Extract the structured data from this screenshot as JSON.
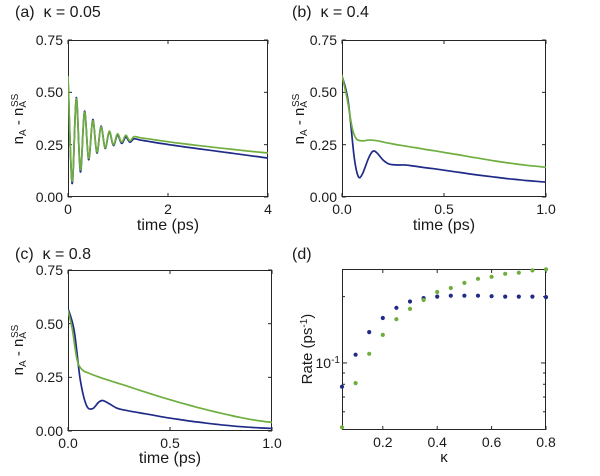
{
  "figure": {
    "background": "#ffffff",
    "spine_color": "#262626",
    "green": "#6fae3e",
    "blue": "#1f2b87"
  },
  "chart_data": [
    {
      "id": "a",
      "type": "line",
      "title": "(a)  κ = 0.05",
      "xlabel": "time (ps)",
      "ylabel_parts": {
        "p1": "n",
        "s1": "A",
        "p2": " - ",
        "p3": "n",
        "s3": "A",
        "sup3": "SS"
      },
      "xlim": [
        0,
        4
      ],
      "ylim": [
        0,
        0.75
      ],
      "grid": false,
      "legend": "none",
      "xticks": {
        "values": [
          0,
          2,
          4
        ],
        "labels": [
          "0",
          "2",
          "4"
        ]
      },
      "yticks": {
        "values": [
          0,
          0.25,
          0.5,
          0.75
        ],
        "labels": [
          "0.00",
          "0.25",
          "0.50",
          "0.75"
        ]
      },
      "series": [
        {
          "name": "blue",
          "color": "#1f2b87",
          "points": [
            [
              0,
              0.575
            ],
            [
              0.0825,
              0.065
            ],
            [
              0.165,
              0.475
            ],
            [
              0.2475,
              0.12
            ],
            [
              0.33,
              0.41
            ],
            [
              0.4125,
              0.178
            ],
            [
              0.495,
              0.37
            ],
            [
              0.5775,
              0.21
            ],
            [
              0.66,
              0.338
            ],
            [
              0.7425,
              0.232
            ],
            [
              0.825,
              0.312
            ],
            [
              0.9075,
              0.246
            ],
            [
              0.99,
              0.296
            ],
            [
              1.0725,
              0.256
            ],
            [
              1.155,
              0.286
            ],
            [
              1.2375,
              0.262
            ],
            [
              1.32,
              0.278
            ],
            [
              1.45,
              0.272
            ],
            [
              1.6,
              0.266
            ],
            [
              1.8,
              0.258
            ],
            [
              2,
              0.251
            ],
            [
              2.25,
              0.242
            ],
            [
              2.5,
              0.234
            ],
            [
              2.75,
              0.226
            ],
            [
              3,
              0.218
            ],
            [
              3.25,
              0.21
            ],
            [
              3.5,
              0.202
            ],
            [
              3.75,
              0.194
            ],
            [
              4,
              0.186
            ]
          ]
        },
        {
          "name": "green",
          "color": "#6fae3e",
          "points": [
            [
              0,
              0.575
            ],
            [
              0.0825,
              0.075
            ],
            [
              0.165,
              0.47
            ],
            [
              0.2475,
              0.13
            ],
            [
              0.33,
              0.405
            ],
            [
              0.4125,
              0.185
            ],
            [
              0.495,
              0.365
            ],
            [
              0.5775,
              0.215
            ],
            [
              0.66,
              0.335
            ],
            [
              0.7425,
              0.235
            ],
            [
              0.825,
              0.315
            ],
            [
              0.9075,
              0.25
            ],
            [
              0.99,
              0.302
            ],
            [
              1.0725,
              0.262
            ],
            [
              1.155,
              0.295
            ],
            [
              1.2375,
              0.268
            ],
            [
              1.32,
              0.288
            ],
            [
              1.45,
              0.283
            ],
            [
              1.6,
              0.278
            ],
            [
              1.8,
              0.271
            ],
            [
              2,
              0.264
            ],
            [
              2.25,
              0.256
            ],
            [
              2.5,
              0.249
            ],
            [
              2.75,
              0.242
            ],
            [
              3,
              0.235
            ],
            [
              3.25,
              0.229
            ],
            [
              3.5,
              0.222
            ],
            [
              3.75,
              0.216
            ],
            [
              4,
              0.21
            ]
          ]
        }
      ]
    },
    {
      "id": "b",
      "type": "line",
      "title": "(b)  κ = 0.4",
      "xlabel": "time (ps)",
      "ylabel_parts": {
        "p1": "n",
        "s1": "A",
        "p2": " - ",
        "p3": "n",
        "s3": "A",
        "sup3": "SS"
      },
      "xlim": [
        0,
        1
      ],
      "ylim": [
        0,
        0.75
      ],
      "grid": false,
      "legend": "none",
      "xticks": {
        "values": [
          0,
          0.5,
          1
        ],
        "labels": [
          "0.0",
          "0.5",
          "1.0"
        ]
      },
      "yticks": {
        "values": [
          0,
          0.25,
          0.5,
          0.75
        ],
        "labels": [
          "0.00",
          "0.25",
          "0.50",
          "0.75"
        ]
      },
      "series": [
        {
          "name": "blue",
          "color": "#1f2b87",
          "points": [
            [
              0,
              0.58
            ],
            [
              0.03,
              0.46
            ],
            [
              0.06,
              0.19
            ],
            [
              0.08,
              0.098
            ],
            [
              0.1,
              0.11
            ],
            [
              0.13,
              0.185
            ],
            [
              0.15,
              0.218
            ],
            [
              0.17,
              0.212
            ],
            [
              0.2,
              0.178
            ],
            [
              0.23,
              0.158
            ],
            [
              0.27,
              0.153
            ],
            [
              0.31,
              0.153
            ],
            [
              0.35,
              0.148
            ],
            [
              0.4,
              0.141
            ],
            [
              0.45,
              0.135
            ],
            [
              0.5,
              0.128
            ],
            [
              0.55,
              0.121
            ],
            [
              0.6,
              0.114
            ],
            [
              0.65,
              0.107
            ],
            [
              0.7,
              0.101
            ],
            [
              0.75,
              0.095
            ],
            [
              0.8,
              0.089
            ],
            [
              0.85,
              0.084
            ],
            [
              0.9,
              0.079
            ],
            [
              0.95,
              0.075
            ],
            [
              1,
              0.071
            ]
          ]
        },
        {
          "name": "green",
          "color": "#6fae3e",
          "points": [
            [
              0,
              0.58
            ],
            [
              0.025,
              0.47
            ],
            [
              0.05,
              0.33
            ],
            [
              0.07,
              0.278
            ],
            [
              0.1,
              0.268
            ],
            [
              0.13,
              0.272
            ],
            [
              0.17,
              0.269
            ],
            [
              0.21,
              0.261
            ],
            [
              0.25,
              0.253
            ],
            [
              0.3,
              0.245
            ],
            [
              0.35,
              0.237
            ],
            [
              0.4,
              0.229
            ],
            [
              0.45,
              0.221
            ],
            [
              0.5,
              0.213
            ],
            [
              0.55,
              0.205
            ],
            [
              0.6,
              0.197
            ],
            [
              0.65,
              0.188
            ],
            [
              0.7,
              0.18
            ],
            [
              0.75,
              0.172
            ],
            [
              0.8,
              0.165
            ],
            [
              0.85,
              0.158
            ],
            [
              0.9,
              0.152
            ],
            [
              0.95,
              0.147
            ],
            [
              1,
              0.142
            ]
          ]
        }
      ]
    },
    {
      "id": "c",
      "type": "line",
      "title": "(c)  κ = 0.8",
      "xlabel": "time (ps)",
      "ylabel_parts": {
        "p1": "n",
        "s1": "A",
        "p2": " - ",
        "p3": "n",
        "s3": "A",
        "sup3": "SS"
      },
      "xlim": [
        0,
        1
      ],
      "ylim": [
        0,
        0.75
      ],
      "grid": false,
      "legend": "none",
      "xticks": {
        "values": [
          0,
          0.5,
          1
        ],
        "labels": [
          "0.0",
          "0.5",
          "1.0"
        ]
      },
      "yticks": {
        "values": [
          0,
          0.25,
          0.5,
          0.75
        ],
        "labels": [
          "0.00",
          "0.25",
          "0.50",
          "0.75"
        ]
      },
      "series": [
        {
          "name": "blue",
          "color": "#1f2b87",
          "points": [
            [
              0,
              0.57
            ],
            [
              0.03,
              0.47
            ],
            [
              0.06,
              0.24
            ],
            [
              0.09,
              0.12
            ],
            [
              0.12,
              0.104
            ],
            [
              0.15,
              0.134
            ],
            [
              0.17,
              0.142
            ],
            [
              0.2,
              0.128
            ],
            [
              0.24,
              0.106
            ],
            [
              0.28,
              0.097
            ],
            [
              0.33,
              0.088
            ],
            [
              0.38,
              0.08
            ],
            [
              0.45,
              0.068
            ],
            [
              0.5,
              0.06
            ],
            [
              0.55,
              0.053
            ],
            [
              0.6,
              0.046
            ],
            [
              0.65,
              0.04
            ],
            [
              0.7,
              0.034
            ],
            [
              0.75,
              0.029
            ],
            [
              0.8,
              0.024
            ],
            [
              0.85,
              0.02
            ],
            [
              0.9,
              0.017
            ],
            [
              0.95,
              0.014
            ],
            [
              1,
              0.012
            ]
          ]
        },
        {
          "name": "green",
          "color": "#6fae3e",
          "points": [
            [
              0,
              0.56
            ],
            [
              0.02,
              0.48
            ],
            [
              0.045,
              0.33
            ],
            [
              0.07,
              0.285
            ],
            [
              0.1,
              0.27
            ],
            [
              0.15,
              0.252
            ],
            [
              0.2,
              0.236
            ],
            [
              0.25,
              0.221
            ],
            [
              0.3,
              0.206
            ],
            [
              0.35,
              0.19
            ],
            [
              0.4,
              0.175
            ],
            [
              0.45,
              0.16
            ],
            [
              0.5,
              0.146
            ],
            [
              0.55,
              0.132
            ],
            [
              0.6,
              0.119
            ],
            [
              0.65,
              0.106
            ],
            [
              0.7,
              0.094
            ],
            [
              0.75,
              0.083
            ],
            [
              0.8,
              0.072
            ],
            [
              0.85,
              0.062
            ],
            [
              0.9,
              0.053
            ],
            [
              0.95,
              0.046
            ],
            [
              1,
              0.04
            ]
          ]
        }
      ]
    },
    {
      "id": "d",
      "type": "scatter",
      "title": "(d)",
      "xlabel": "κ",
      "ylabel_parts": {
        "pre": "Rate (ps",
        "sup": "-1",
        "post": ")"
      },
      "xlim": [
        0.05,
        0.8
      ],
      "yscale": "log",
      "ylim": [
        0.0496,
        0.267
      ],
      "grid": false,
      "legend": "none",
      "xticks": {
        "values": [
          0.2,
          0.4,
          0.6,
          0.8
        ],
        "labels": [
          "0.2",
          "0.4",
          "0.6",
          "0.8"
        ]
      },
      "ytick_major": {
        "value": 0.1,
        "base": "10",
        "exp": "-1"
      },
      "ytick_minor_values": [
        0.06,
        0.07,
        0.08,
        0.09,
        0.2
      ],
      "series": [
        {
          "name": "blue",
          "color": "#1f2b87",
          "x": [
            0.05,
            0.1,
            0.15,
            0.2,
            0.25,
            0.3,
            0.35,
            0.4,
            0.45,
            0.5,
            0.55,
            0.6,
            0.65,
            0.7,
            0.75,
            0.8
          ],
          "y": [
            0.078,
            0.109,
            0.138,
            0.16,
            0.178,
            0.19,
            0.197,
            0.2,
            0.202,
            0.202,
            0.202,
            0.201,
            0.2,
            0.2,
            0.2,
            0.199
          ]
        },
        {
          "name": "green",
          "color": "#6fae3e",
          "x": [
            0.05,
            0.1,
            0.15,
            0.2,
            0.25,
            0.3,
            0.35,
            0.4,
            0.45,
            0.5,
            0.55,
            0.6,
            0.65,
            0.7,
            0.75,
            0.8
          ],
          "y": [
            0.051,
            0.081,
            0.11,
            0.134,
            0.158,
            0.176,
            0.193,
            0.21,
            0.219,
            0.231,
            0.241,
            0.246,
            0.254,
            0.257,
            0.263,
            0.266
          ]
        }
      ]
    }
  ]
}
